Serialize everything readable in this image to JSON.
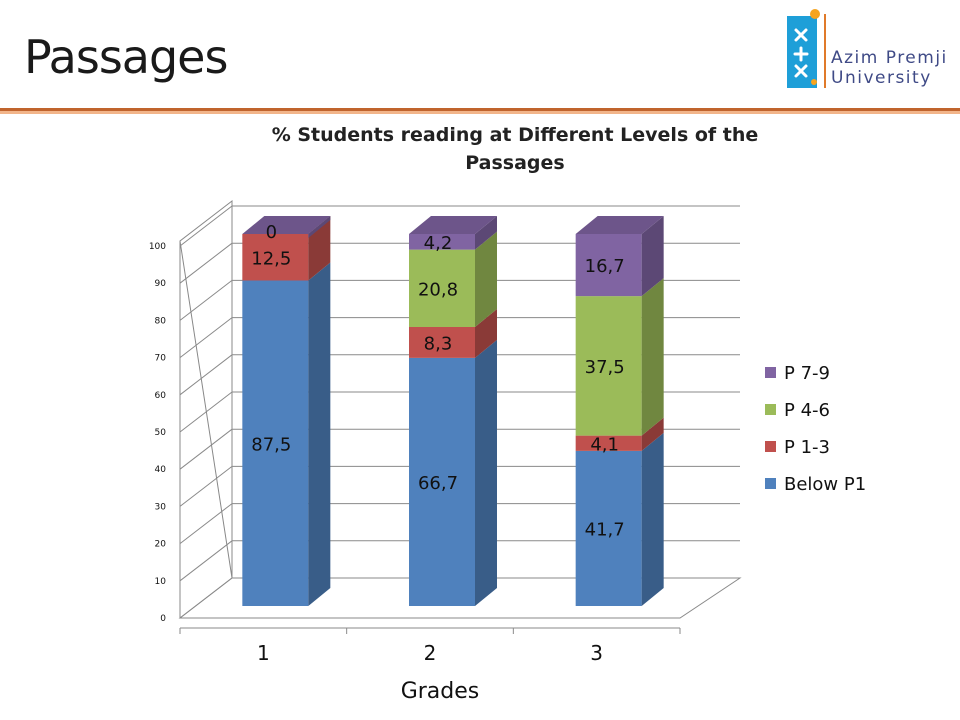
{
  "slide": {
    "title": "Passages"
  },
  "logo": {
    "line1": "Azim Premji",
    "line2": "University"
  },
  "colors": {
    "accent_rule": "#c0642d",
    "accent_rule_light": "#f2b58a",
    "logo_orange": "#e07a2a",
    "logo_blue": "#1e9fd8",
    "logo_text": "#3f4a86"
  },
  "chart_data": {
    "type": "bar",
    "stacked": true,
    "three_d": true,
    "title": "% Students reading at Different Levels of the Passages",
    "title_lines": [
      "% Students reading at Different Levels of the",
      "Passages"
    ],
    "xlabel": "Grades",
    "ylabel": "",
    "categories": [
      "1",
      "2",
      "3"
    ],
    "ylim": [
      0,
      100
    ],
    "yticks": [
      0,
      10,
      20,
      30,
      40,
      50,
      60,
      70,
      80,
      90,
      100
    ],
    "grid": true,
    "legend_position": "right",
    "series": [
      {
        "name": "Below P1",
        "color": "#4f81bd",
        "values": [
          87.5,
          66.7,
          41.7
        ],
        "labels": [
          "87,5",
          "66,7",
          "41,7"
        ]
      },
      {
        "name": "P 1-3",
        "color": "#c0504d",
        "values": [
          12.5,
          8.3,
          4.1
        ],
        "labels": [
          "12,5",
          "8,3",
          "4,1"
        ]
      },
      {
        "name": "P 4-6",
        "color": "#9bbb59",
        "values": [
          0,
          20.8,
          37.5
        ],
        "labels": [
          "",
          "20,8",
          "37,5"
        ]
      },
      {
        "name": "P 7-9",
        "color": "#8064a2",
        "values": [
          0,
          4.2,
          16.7
        ],
        "labels": [
          "0",
          "4,2",
          "16,7"
        ]
      }
    ],
    "legend_order": [
      "P 7-9",
      "P 4-6",
      "P 1-3",
      "Below P1"
    ]
  }
}
